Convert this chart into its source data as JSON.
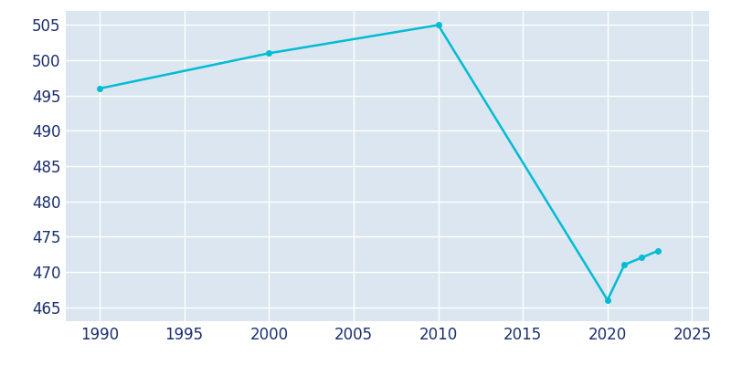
{
  "years": [
    1990,
    2000,
    2010,
    2020,
    2021,
    2022,
    2023
  ],
  "population": [
    496,
    501,
    505,
    466,
    471,
    472,
    473
  ],
  "line_color": "#00bcd4",
  "plot_bg_color": "#dce6f0",
  "fig_bg_color": "#ffffff",
  "grid_color": "#ffffff",
  "text_color": "#1a2e6e",
  "xlim": [
    1988,
    2026
  ],
  "ylim": [
    463,
    507
  ],
  "xticks": [
    1990,
    1995,
    2000,
    2005,
    2010,
    2015,
    2020,
    2025
  ],
  "yticks": [
    465,
    470,
    475,
    480,
    485,
    490,
    495,
    500,
    505
  ],
  "linewidth": 1.8,
  "markersize": 4,
  "tick_fontsize": 12
}
